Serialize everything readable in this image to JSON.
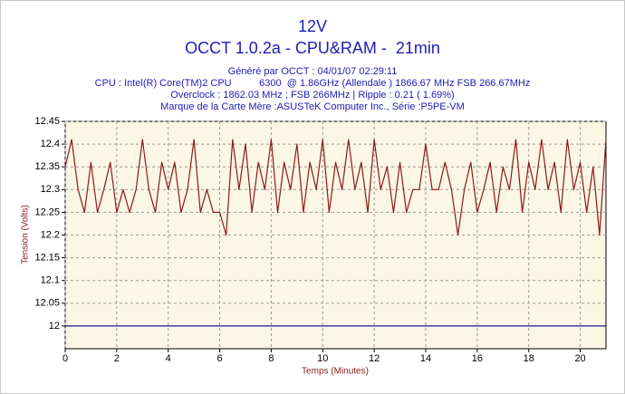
{
  "chart_data": {
    "type": "line",
    "title": "12V",
    "subtitle": "OCCT 1.0.2a - CPU&RAM -  21min",
    "info_lines": [
      "Généré par OCCT : 04/01/07 02:29:11",
      "CPU : Intel(R) Core(TM)2 CPU          6300  @ 1.86GHz (Allendale ) 1866.67 MHz FSB 266.67MHz",
      "Overclock : 1862.03 MHz ; FSB 266MHz | Ripple : 0.21 ( 1.69%)",
      "Marque de la Carte Mère :ASUSTeK Computer Inc., Série :P5PE-VM"
    ],
    "x_label": "Temps (Minutes)",
    "y_label": "Tension (Volts)",
    "xlim": [
      0,
      21
    ],
    "ylim": [
      11.95,
      12.45
    ],
    "xticks": [
      0,
      2,
      4,
      6,
      8,
      10,
      12,
      14,
      16,
      18,
      20
    ],
    "yticks": [
      12,
      12.05,
      12.1,
      12.15,
      12.2,
      12.25,
      12.3,
      12.35,
      12.4,
      12.45
    ],
    "grid": true,
    "reference_line": {
      "value": 12,
      "color": "#1a1aa0"
    },
    "series": [
      {
        "color": "#8b1a1a",
        "x": [
          0,
          0.25,
          0.5,
          0.75,
          1,
          1.25,
          1.5,
          1.75,
          2,
          2.25,
          2.5,
          2.75,
          3,
          3.25,
          3.5,
          3.75,
          4,
          4.25,
          4.5,
          4.75,
          5,
          5.25,
          5.5,
          5.75,
          6,
          6.25,
          6.5,
          6.75,
          7,
          7.25,
          7.5,
          7.75,
          8,
          8.25,
          8.5,
          8.75,
          9,
          9.25,
          9.5,
          9.75,
          10,
          10.25,
          10.5,
          10.75,
          11,
          11.25,
          11.5,
          11.75,
          12,
          12.25,
          12.5,
          12.75,
          13,
          13.25,
          13.5,
          13.75,
          14,
          14.25,
          14.5,
          14.75,
          15,
          15.25,
          15.5,
          15.75,
          16,
          16.25,
          16.5,
          16.75,
          17,
          17.25,
          17.5,
          17.75,
          18,
          18.25,
          18.5,
          18.75,
          19,
          19.25,
          19.5,
          19.75,
          20,
          20.25,
          20.5,
          20.75,
          21
        ],
        "values": [
          12.35,
          12.41,
          12.3,
          12.25,
          12.36,
          12.25,
          12.3,
          12.36,
          12.25,
          12.3,
          12.25,
          12.3,
          12.41,
          12.3,
          12.25,
          12.36,
          12.3,
          12.36,
          12.25,
          12.3,
          12.41,
          12.25,
          12.3,
          12.25,
          12.25,
          12.2,
          12.41,
          12.3,
          12.4,
          12.25,
          12.36,
          12.3,
          12.41,
          12.25,
          12.36,
          12.3,
          12.4,
          12.25,
          12.36,
          12.3,
          12.41,
          12.25,
          12.36,
          12.3,
          12.41,
          12.3,
          12.36,
          12.25,
          12.41,
          12.3,
          12.35,
          12.25,
          12.36,
          12.25,
          12.3,
          12.3,
          12.4,
          12.3,
          12.3,
          12.36,
          12.3,
          12.2,
          12.3,
          12.36,
          12.25,
          12.3,
          12.36,
          12.25,
          12.35,
          12.3,
          12.41,
          12.25,
          12.36,
          12.3,
          12.41,
          12.3,
          12.36,
          12.25,
          12.41,
          12.3,
          12.36,
          12.25,
          12.35,
          12.2,
          12.41
        ]
      }
    ]
  }
}
